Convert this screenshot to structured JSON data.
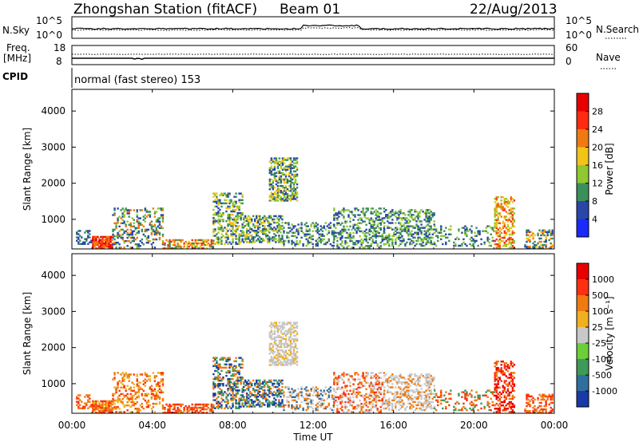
{
  "header": {
    "station": "Zhongshan Station (fitACF)",
    "beam": "Beam 01",
    "date": "22/Aug/2013"
  },
  "panels": {
    "nsky_label": "N.Sky",
    "nsky_ticks": [
      "10^5",
      "10^0"
    ],
    "nsearch_label": "N.Search",
    "nsearch_ticks": [
      "10^5",
      "10^0"
    ],
    "freq_label": "Freq.",
    "freq_unit": "[MHz]",
    "freq_ticks": [
      "18",
      "8"
    ],
    "nave_label": "Nave",
    "nave_ticks": [
      "60",
      "0"
    ],
    "cpid_label": "CPID",
    "cpid_text": "normal (fast stereo) 153"
  },
  "chart_data": [
    {
      "type": "heatmap",
      "panel": "power",
      "ylabel": "Slant Range [km]",
      "yticks": [
        "4000",
        "3000",
        "2000",
        "1000"
      ],
      "ylim": [
        180,
        4600
      ],
      "colorbar_label": "Power [dB]",
      "colorbar_ticks": [
        "28",
        "24",
        "20",
        "16",
        "12",
        "8",
        "4"
      ],
      "colors": [
        "#1a2aff",
        "#2a47a8",
        "#3a8f5c",
        "#8fc830",
        "#f0c418",
        "#f07a10",
        "#ff2a10",
        "#e80000"
      ]
    },
    {
      "type": "heatmap",
      "panel": "velocity",
      "ylabel": "Slant Range [km]",
      "yticks": [
        "4000",
        "3000",
        "2000",
        "1000"
      ],
      "ylim": [
        180,
        4600
      ],
      "colorbar_label": "Velocity [m s⁻¹]",
      "colorbar_ticks": [
        "1000",
        "500",
        "100",
        "25",
        "-25",
        "-100",
        "-500",
        "-1000"
      ],
      "colors": [
        "#1a3aa8",
        "#2f6fa0",
        "#3d9a58",
        "#6ccf3a",
        "#c8c8c8",
        "#f0b020",
        "#f07a10",
        "#ff3010",
        "#e80000"
      ]
    }
  ],
  "xaxis": {
    "label": "Time UT",
    "ticks": [
      "00:00",
      "04:00",
      "08:00",
      "12:00",
      "16:00",
      "20:00",
      "00:00"
    ]
  }
}
